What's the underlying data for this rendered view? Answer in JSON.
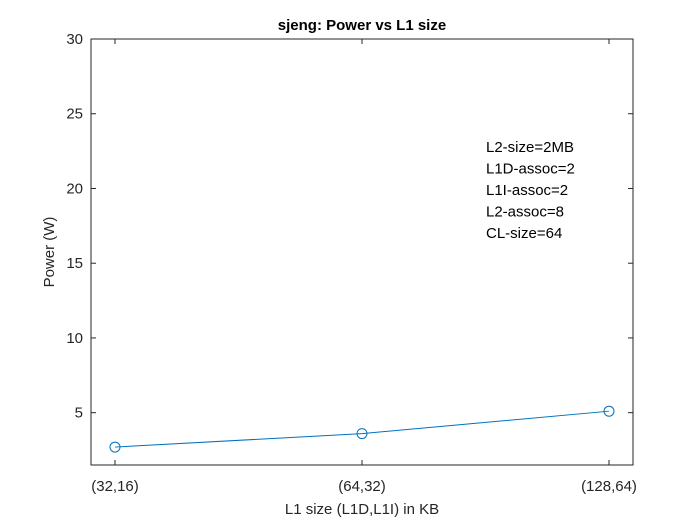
{
  "chart_data": {
    "type": "line",
    "title": "sjeng: Power vs L1 size",
    "xlabel": "L1 size (L1D,L1I) in KB",
    "ylabel": "Power (W)",
    "categories": [
      "(32,16)",
      "(64,32)",
      "(128,64)"
    ],
    "series": [
      {
        "values": [
          2.7,
          3.6,
          5.1
        ],
        "color": "#0072bd",
        "marker": "circle"
      }
    ],
    "ylim": [
      1.5,
      30
    ],
    "yticks": [
      5,
      10,
      15,
      20,
      25,
      30
    ],
    "grid": false,
    "annotations": [
      "L2-size=2MB",
      "L1D-assoc=2",
      "L1I-assoc=2",
      "L2-assoc=8",
      "CL-size=64"
    ]
  }
}
